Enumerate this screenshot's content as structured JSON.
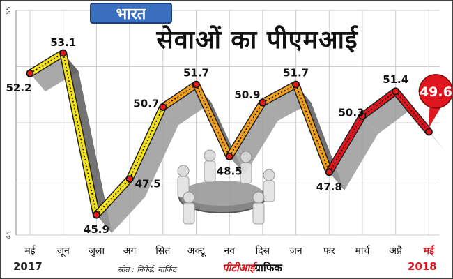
{
  "header": {
    "badge": "भारत",
    "title": "सेवाओं का पीएमआई"
  },
  "footer": {
    "year_start": "2017",
    "year_end": "2018",
    "source": "स्रोत : निकेई, मार्किट",
    "credit_brand": "पीटीआई",
    "credit_text": "ग्राफिक"
  },
  "colors": {
    "line_yellow": "#f2e01a",
    "line_orange": "#f0a020",
    "line_red": "#e0161e",
    "ribbon": "#6a6a6a",
    "grid": "#cccccc"
  },
  "chart_data": {
    "type": "line",
    "categories": [
      "मई",
      "जून",
      "जुला",
      "अग",
      "सित",
      "अक्टू",
      "नव",
      "दिस",
      "जन",
      "फर",
      "मार्च",
      "अप्रै",
      "मई"
    ],
    "values": [
      52.2,
      53.1,
      45.9,
      47.5,
      50.7,
      51.7,
      48.5,
      50.9,
      51.7,
      47.8,
      50.3,
      51.4,
      49.6
    ],
    "value_labels": [
      "52.2",
      "53.1",
      "45.9",
      "47.5",
      "50.7",
      "51.7",
      "48.5",
      "50.9",
      "51.7",
      "47.8",
      "50.3",
      "51.4",
      "49.6"
    ],
    "yticks": [
      "55",
      "45"
    ],
    "ylim": [
      45,
      55
    ],
    "grid": true,
    "highlight_last": true
  }
}
